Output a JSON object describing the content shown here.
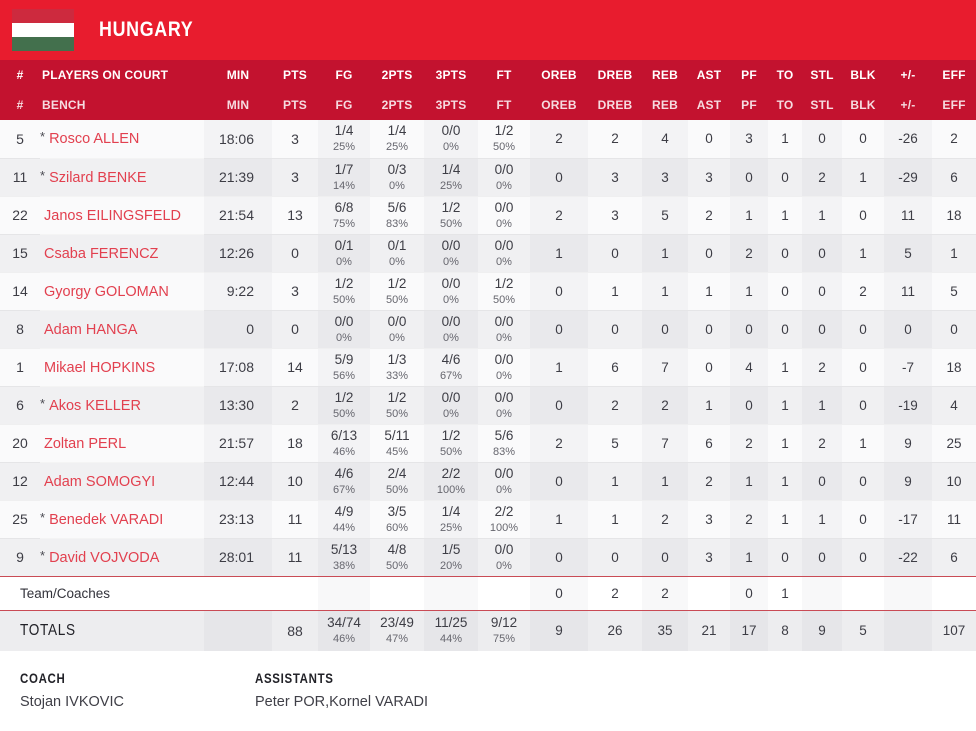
{
  "team": {
    "name": "HUNGARY"
  },
  "colors": {
    "banner_red": "#e81c2e",
    "header_red": "#c3122f",
    "name_red": "#e2404f",
    "flag_red": "#cd2a3e",
    "flag_green": "#43704d",
    "line_red": "#c94b55"
  },
  "table": {
    "headers": {
      "number_sign": "#",
      "oncourt_label": "PLAYERS ON COURT",
      "bench_label": "BENCH",
      "cols": [
        "MIN",
        "PTS",
        "FG",
        "2PTS",
        "3PTS",
        "FT",
        "OREB",
        "DREB",
        "REB",
        "AST",
        "PF",
        "TO",
        "STL",
        "BLK",
        "+/-",
        "EFF"
      ]
    },
    "players": [
      {
        "num": "5",
        "star": "*",
        "name": "Rosco ALLEN",
        "min": "18:06",
        "pts": "3",
        "fg": "1/4",
        "fg_pct": "25%",
        "p2": "1/4",
        "p2_pct": "25%",
        "p3": "0/0",
        "p3_pct": "0%",
        "ft": "1/2",
        "ft_pct": "50%",
        "oreb": "2",
        "dreb": "2",
        "reb": "4",
        "ast": "0",
        "pf": "3",
        "to": "1",
        "stl": "0",
        "blk": "0",
        "pm": "-26",
        "eff": "2"
      },
      {
        "num": "11",
        "star": "*",
        "name": "Szilard BENKE",
        "min": "21:39",
        "pts": "3",
        "fg": "1/7",
        "fg_pct": "14%",
        "p2": "0/3",
        "p2_pct": "0%",
        "p3": "1/4",
        "p3_pct": "25%",
        "ft": "0/0",
        "ft_pct": "0%",
        "oreb": "0",
        "dreb": "3",
        "reb": "3",
        "ast": "3",
        "pf": "0",
        "to": "0",
        "stl": "2",
        "blk": "1",
        "pm": "-29",
        "eff": "6"
      },
      {
        "num": "22",
        "star": "",
        "name": "Janos EILINGSFELD",
        "min": "21:54",
        "pts": "13",
        "fg": "6/8",
        "fg_pct": "75%",
        "p2": "5/6",
        "p2_pct": "83%",
        "p3": "1/2",
        "p3_pct": "50%",
        "ft": "0/0",
        "ft_pct": "0%",
        "oreb": "2",
        "dreb": "3",
        "reb": "5",
        "ast": "2",
        "pf": "1",
        "to": "1",
        "stl": "1",
        "blk": "0",
        "pm": "11",
        "eff": "18"
      },
      {
        "num": "15",
        "star": "",
        "name": "Csaba FERENCZ",
        "min": "12:26",
        "pts": "0",
        "fg": "0/1",
        "fg_pct": "0%",
        "p2": "0/1",
        "p2_pct": "0%",
        "p3": "0/0",
        "p3_pct": "0%",
        "ft": "0/0",
        "ft_pct": "0%",
        "oreb": "1",
        "dreb": "0",
        "reb": "1",
        "ast": "0",
        "pf": "2",
        "to": "0",
        "stl": "0",
        "blk": "1",
        "pm": "5",
        "eff": "1"
      },
      {
        "num": "14",
        "star": "",
        "name": "Gyorgy GOLOMAN",
        "min": "9:22",
        "pts": "3",
        "fg": "1/2",
        "fg_pct": "50%",
        "p2": "1/2",
        "p2_pct": "50%",
        "p3": "0/0",
        "p3_pct": "0%",
        "ft": "1/2",
        "ft_pct": "50%",
        "oreb": "0",
        "dreb": "1",
        "reb": "1",
        "ast": "1",
        "pf": "1",
        "to": "0",
        "stl": "0",
        "blk": "2",
        "pm": "11",
        "eff": "5"
      },
      {
        "num": "8",
        "star": "",
        "name": "Adam HANGA",
        "min": "0",
        "pts": "0",
        "fg": "0/0",
        "fg_pct": "0%",
        "p2": "0/0",
        "p2_pct": "0%",
        "p3": "0/0",
        "p3_pct": "0%",
        "ft": "0/0",
        "ft_pct": "0%",
        "oreb": "0",
        "dreb": "0",
        "reb": "0",
        "ast": "0",
        "pf": "0",
        "to": "0",
        "stl": "0",
        "blk": "0",
        "pm": "0",
        "eff": "0"
      },
      {
        "num": "1",
        "star": "",
        "name": "Mikael HOPKINS",
        "min": "17:08",
        "pts": "14",
        "fg": "5/9",
        "fg_pct": "56%",
        "p2": "1/3",
        "p2_pct": "33%",
        "p3": "4/6",
        "p3_pct": "67%",
        "ft": "0/0",
        "ft_pct": "0%",
        "oreb": "1",
        "dreb": "6",
        "reb": "7",
        "ast": "0",
        "pf": "4",
        "to": "1",
        "stl": "2",
        "blk": "0",
        "pm": "-7",
        "eff": "18"
      },
      {
        "num": "6",
        "star": "*",
        "name": "Akos KELLER",
        "min": "13:30",
        "pts": "2",
        "fg": "1/2",
        "fg_pct": "50%",
        "p2": "1/2",
        "p2_pct": "50%",
        "p3": "0/0",
        "p3_pct": "0%",
        "ft": "0/0",
        "ft_pct": "0%",
        "oreb": "0",
        "dreb": "2",
        "reb": "2",
        "ast": "1",
        "pf": "0",
        "to": "1",
        "stl": "1",
        "blk": "0",
        "pm": "-19",
        "eff": "4"
      },
      {
        "num": "20",
        "star": "",
        "name": "Zoltan PERL",
        "min": "21:57",
        "pts": "18",
        "fg": "6/13",
        "fg_pct": "46%",
        "p2": "5/11",
        "p2_pct": "45%",
        "p3": "1/2",
        "p3_pct": "50%",
        "ft": "5/6",
        "ft_pct": "83%",
        "oreb": "2",
        "dreb": "5",
        "reb": "7",
        "ast": "6",
        "pf": "2",
        "to": "1",
        "stl": "2",
        "blk": "1",
        "pm": "9",
        "eff": "25"
      },
      {
        "num": "12",
        "star": "",
        "name": "Adam SOMOGYI",
        "min": "12:44",
        "pts": "10",
        "fg": "4/6",
        "fg_pct": "67%",
        "p2": "2/4",
        "p2_pct": "50%",
        "p3": "2/2",
        "p3_pct": "100%",
        "ft": "0/0",
        "ft_pct": "0%",
        "oreb": "0",
        "dreb": "1",
        "reb": "1",
        "ast": "2",
        "pf": "1",
        "to": "1",
        "stl": "0",
        "blk": "0",
        "pm": "9",
        "eff": "10"
      },
      {
        "num": "25",
        "star": "*",
        "name": "Benedek VARADI",
        "min": "23:13",
        "pts": "11",
        "fg": "4/9",
        "fg_pct": "44%",
        "p2": "3/5",
        "p2_pct": "60%",
        "p3": "1/4",
        "p3_pct": "25%",
        "ft": "2/2",
        "ft_pct": "100%",
        "oreb": "1",
        "dreb": "1",
        "reb": "2",
        "ast": "3",
        "pf": "2",
        "to": "1",
        "stl": "1",
        "blk": "0",
        "pm": "-17",
        "eff": "11"
      },
      {
        "num": "9",
        "star": "*",
        "name": "David VOJVODA",
        "min": "28:01",
        "pts": "11",
        "fg": "5/13",
        "fg_pct": "38%",
        "p2": "4/8",
        "p2_pct": "50%",
        "p3": "1/5",
        "p3_pct": "20%",
        "ft": "0/0",
        "ft_pct": "0%",
        "oreb": "0",
        "dreb": "0",
        "reb": "0",
        "ast": "3",
        "pf": "1",
        "to": "0",
        "stl": "0",
        "blk": "0",
        "pm": "-22",
        "eff": "6"
      }
    ],
    "team_row": {
      "label": "Team/Coaches",
      "oreb": "0",
      "dreb": "2",
      "reb": "2",
      "ast": "",
      "pf": "0",
      "to": "1",
      "stl": "",
      "blk": "",
      "pm": "",
      "eff": ""
    },
    "totals": {
      "label": "TOTALS",
      "min": "",
      "pts": "88",
      "fg": "34/74",
      "fg_pct": "46%",
      "p2": "23/49",
      "p2_pct": "47%",
      "p3": "11/25",
      "p3_pct": "44%",
      "ft": "9/12",
      "ft_pct": "75%",
      "oreb": "9",
      "dreb": "26",
      "reb": "35",
      "ast": "21",
      "pf": "17",
      "to": "8",
      "stl": "9",
      "blk": "5",
      "pm": "",
      "eff": "107"
    }
  },
  "footer": {
    "coach_label": "COACH",
    "coach_name": "Stojan IVKOVIC",
    "assistants_label": "ASSISTANTS",
    "assistants_names": "Peter POR,Kornel VARADI"
  }
}
